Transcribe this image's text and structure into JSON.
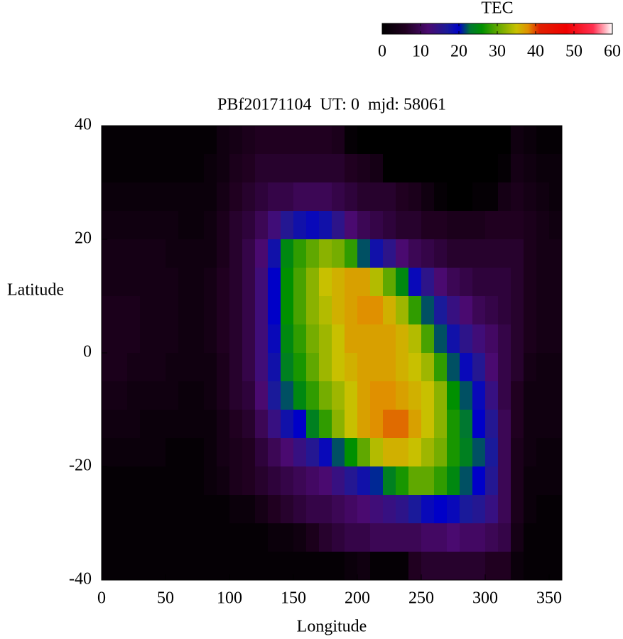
{
  "chart_data": {
    "type": "heatmap",
    "title": "PBf20171104  UT: 0  mjd: 58061",
    "x_label": "Longitude",
    "y_label": "Latitude",
    "colorbar_label": "TEC",
    "xlim": [
      0,
      360
    ],
    "ylim": [
      -40,
      40
    ],
    "zlim": [
      0,
      60
    ],
    "xticks": [
      0,
      50,
      100,
      150,
      200,
      250,
      300,
      350
    ],
    "yticks": [
      -40,
      -20,
      0,
      20,
      40
    ],
    "colorbar_ticks": [
      0,
      10,
      20,
      30,
      40,
      50,
      60
    ],
    "colorscale": [
      [
        0,
        "#000000"
      ],
      [
        6,
        "#200020"
      ],
      [
        12,
        "#4a0a70"
      ],
      [
        17,
        "#1a1a9a"
      ],
      [
        20,
        "#0000c8"
      ],
      [
        23,
        "#007830"
      ],
      [
        26,
        "#009000"
      ],
      [
        30,
        "#60a800"
      ],
      [
        35,
        "#c8c000"
      ],
      [
        38,
        "#e09000"
      ],
      [
        41,
        "#e02000"
      ],
      [
        48,
        "#f00000"
      ],
      [
        55,
        "#ff3050"
      ],
      [
        60,
        "#ffffff"
      ]
    ],
    "x": [
      5,
      15,
      25,
      35,
      45,
      55,
      65,
      75,
      85,
      95,
      105,
      115,
      125,
      135,
      145,
      155,
      165,
      175,
      185,
      195,
      205,
      215,
      225,
      235,
      245,
      255,
      265,
      275,
      285,
      295,
      305,
      315,
      325,
      335,
      345,
      355
    ],
    "y": [
      37.5,
      32.5,
      27.5,
      22.5,
      17.5,
      12.5,
      7.5,
      2.5,
      -2.5,
      -7.5,
      -12.5,
      -17.5,
      -22.5,
      -27.5,
      -32.5,
      -37.5
    ],
    "values": [
      [
        1,
        1,
        1,
        1,
        1,
        1,
        1,
        1,
        1,
        3,
        4,
        5,
        6,
        6,
        6,
        6,
        6,
        6,
        5,
        1,
        0,
        0,
        0,
        0,
        0,
        0,
        0,
        0,
        0,
        0,
        0,
        0,
        3,
        2,
        1,
        1
      ],
      [
        1,
        1,
        1,
        1,
        1,
        1,
        1,
        1,
        2,
        3,
        5,
        6,
        7,
        7,
        7,
        7,
        7,
        7,
        7,
        6,
        5,
        4,
        0,
        0,
        0,
        0,
        0,
        0,
        0,
        0,
        0,
        1,
        4,
        3,
        2,
        2
      ],
      [
        2,
        2,
        2,
        2,
        2,
        2,
        2,
        2,
        2,
        4,
        6,
        7,
        8,
        9,
        9,
        10,
        10,
        10,
        9,
        8,
        7,
        7,
        7,
        6,
        5,
        3,
        1,
        0,
        0,
        1,
        1,
        4,
        5,
        4,
        3,
        2
      ],
      [
        3,
        3,
        3,
        3,
        3,
        3,
        2,
        2,
        3,
        5,
        7,
        8,
        10,
        13,
        16,
        18,
        19,
        18,
        15,
        12,
        10,
        9,
        8,
        7,
        7,
        6,
        6,
        5,
        5,
        5,
        6,
        6,
        6,
        5,
        4,
        3
      ],
      [
        4,
        4,
        4,
        4,
        4,
        3,
        3,
        3,
        3,
        5,
        7,
        9,
        12,
        18,
        25,
        28,
        30,
        32,
        31,
        28,
        22,
        18,
        15,
        12,
        10,
        9,
        8,
        7,
        7,
        7,
        7,
        7,
        7,
        5,
        4,
        4
      ],
      [
        4,
        4,
        4,
        4,
        4,
        4,
        3,
        3,
        4,
        6,
        7,
        9,
        13,
        20,
        26,
        29,
        32,
        35,
        36,
        37,
        37,
        34,
        30,
        25,
        19,
        15,
        12,
        10,
        9,
        8,
        8,
        8,
        7,
        5,
        4,
        4
      ],
      [
        5,
        5,
        5,
        4,
        4,
        4,
        3,
        3,
        4,
        6,
        7,
        9,
        13,
        20,
        26,
        29,
        32,
        34,
        36,
        37,
        38,
        38,
        36,
        33,
        28,
        22,
        17,
        14,
        12,
        10,
        9,
        8,
        7,
        5,
        4,
        4
      ],
      [
        5,
        5,
        5,
        4,
        4,
        4,
        3,
        3,
        4,
        6,
        7,
        9,
        13,
        19,
        25,
        28,
        31,
        33,
        35,
        37,
        37,
        37,
        37,
        36,
        34,
        29,
        22,
        18,
        15,
        13,
        11,
        9,
        7,
        5,
        4,
        4
      ],
      [
        5,
        5,
        4,
        4,
        4,
        3,
        3,
        3,
        3,
        5,
        7,
        9,
        13,
        18,
        24,
        27,
        30,
        33,
        35,
        36,
        37,
        37,
        37,
        36,
        35,
        33,
        28,
        22,
        19,
        16,
        12,
        9,
        7,
        4,
        3,
        3
      ],
      [
        4,
        4,
        3,
        3,
        3,
        3,
        2,
        2,
        3,
        5,
        7,
        8,
        12,
        17,
        22,
        25,
        28,
        31,
        33,
        35,
        37,
        38,
        38,
        37,
        36,
        35,
        32,
        26,
        22,
        19,
        14,
        9,
        6,
        3,
        3,
        3
      ],
      [
        3,
        3,
        3,
        2,
        2,
        2,
        2,
        2,
        2,
        4,
        6,
        7,
        10,
        14,
        18,
        20,
        24,
        28,
        32,
        35,
        37,
        38,
        39,
        39,
        37,
        35,
        32,
        27,
        23,
        20,
        16,
        10,
        6,
        3,
        3,
        3
      ],
      [
        2,
        2,
        2,
        2,
        2,
        1,
        1,
        1,
        2,
        4,
        5,
        6,
        8,
        10,
        12,
        14,
        16,
        19,
        22,
        26,
        30,
        34,
        36,
        36,
        35,
        33,
        31,
        27,
        24,
        22,
        17,
        10,
        5,
        3,
        2,
        2
      ],
      [
        1,
        1,
        1,
        1,
        1,
        1,
        1,
        1,
        2,
        3,
        5,
        6,
        7,
        8,
        9,
        10,
        11,
        12,
        14,
        16,
        18,
        21,
        24,
        27,
        30,
        30,
        28,
        25,
        22,
        20,
        16,
        10,
        5,
        2,
        2,
        2
      ],
      [
        1,
        1,
        1,
        1,
        1,
        1,
        1,
        1,
        1,
        1,
        2,
        2,
        4,
        6,
        7,
        8,
        9,
        9,
        10,
        11,
        12,
        13,
        14,
        15,
        17,
        19,
        20,
        19,
        17,
        16,
        14,
        10,
        5,
        2,
        1,
        1
      ],
      [
        1,
        1,
        1,
        1,
        1,
        1,
        1,
        1,
        1,
        1,
        1,
        1,
        1,
        2,
        2,
        3,
        5,
        7,
        8,
        9,
        9,
        10,
        10,
        10,
        10,
        11,
        11,
        12,
        11,
        11,
        10,
        9,
        4,
        1,
        1,
        1
      ],
      [
        1,
        1,
        1,
        1,
        1,
        1,
        1,
        1,
        1,
        1,
        1,
        1,
        1,
        1,
        1,
        1,
        1,
        1,
        1,
        2,
        3,
        1,
        1,
        1,
        6,
        7,
        7,
        7,
        7,
        7,
        6,
        6,
        2,
        1,
        1,
        1
      ]
    ]
  }
}
